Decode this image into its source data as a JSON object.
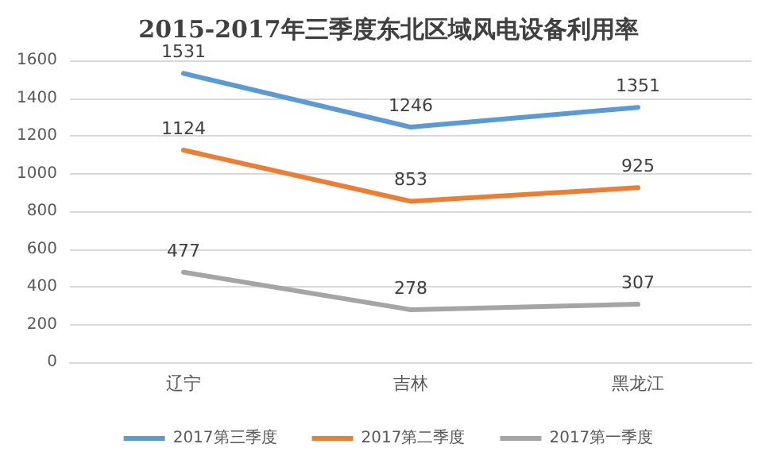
{
  "chart_data": {
    "type": "line",
    "title": "2015-2017年三季度东北区域风电设备利用率",
    "categories": [
      "辽宁",
      "吉林",
      "黑龙江"
    ],
    "series": [
      {
        "name": "2017第三季度",
        "color": "#5b9bd5",
        "values": [
          1531,
          1246,
          1351
        ]
      },
      {
        "name": "2017第二季度",
        "color": "#ed7d31",
        "values": [
          1124,
          853,
          925
        ]
      },
      {
        "name": "2017第一季度",
        "color": "#a5a5a5",
        "values": [
          477,
          278,
          307
        ]
      }
    ],
    "ylim": [
      0,
      1600
    ],
    "yticks": [
      0,
      200,
      400,
      600,
      800,
      1000,
      1200,
      1400,
      1600
    ],
    "grid": "y",
    "legend": "bottom",
    "marker": "none",
    "line_style": "solid",
    "data_labels": true
  }
}
